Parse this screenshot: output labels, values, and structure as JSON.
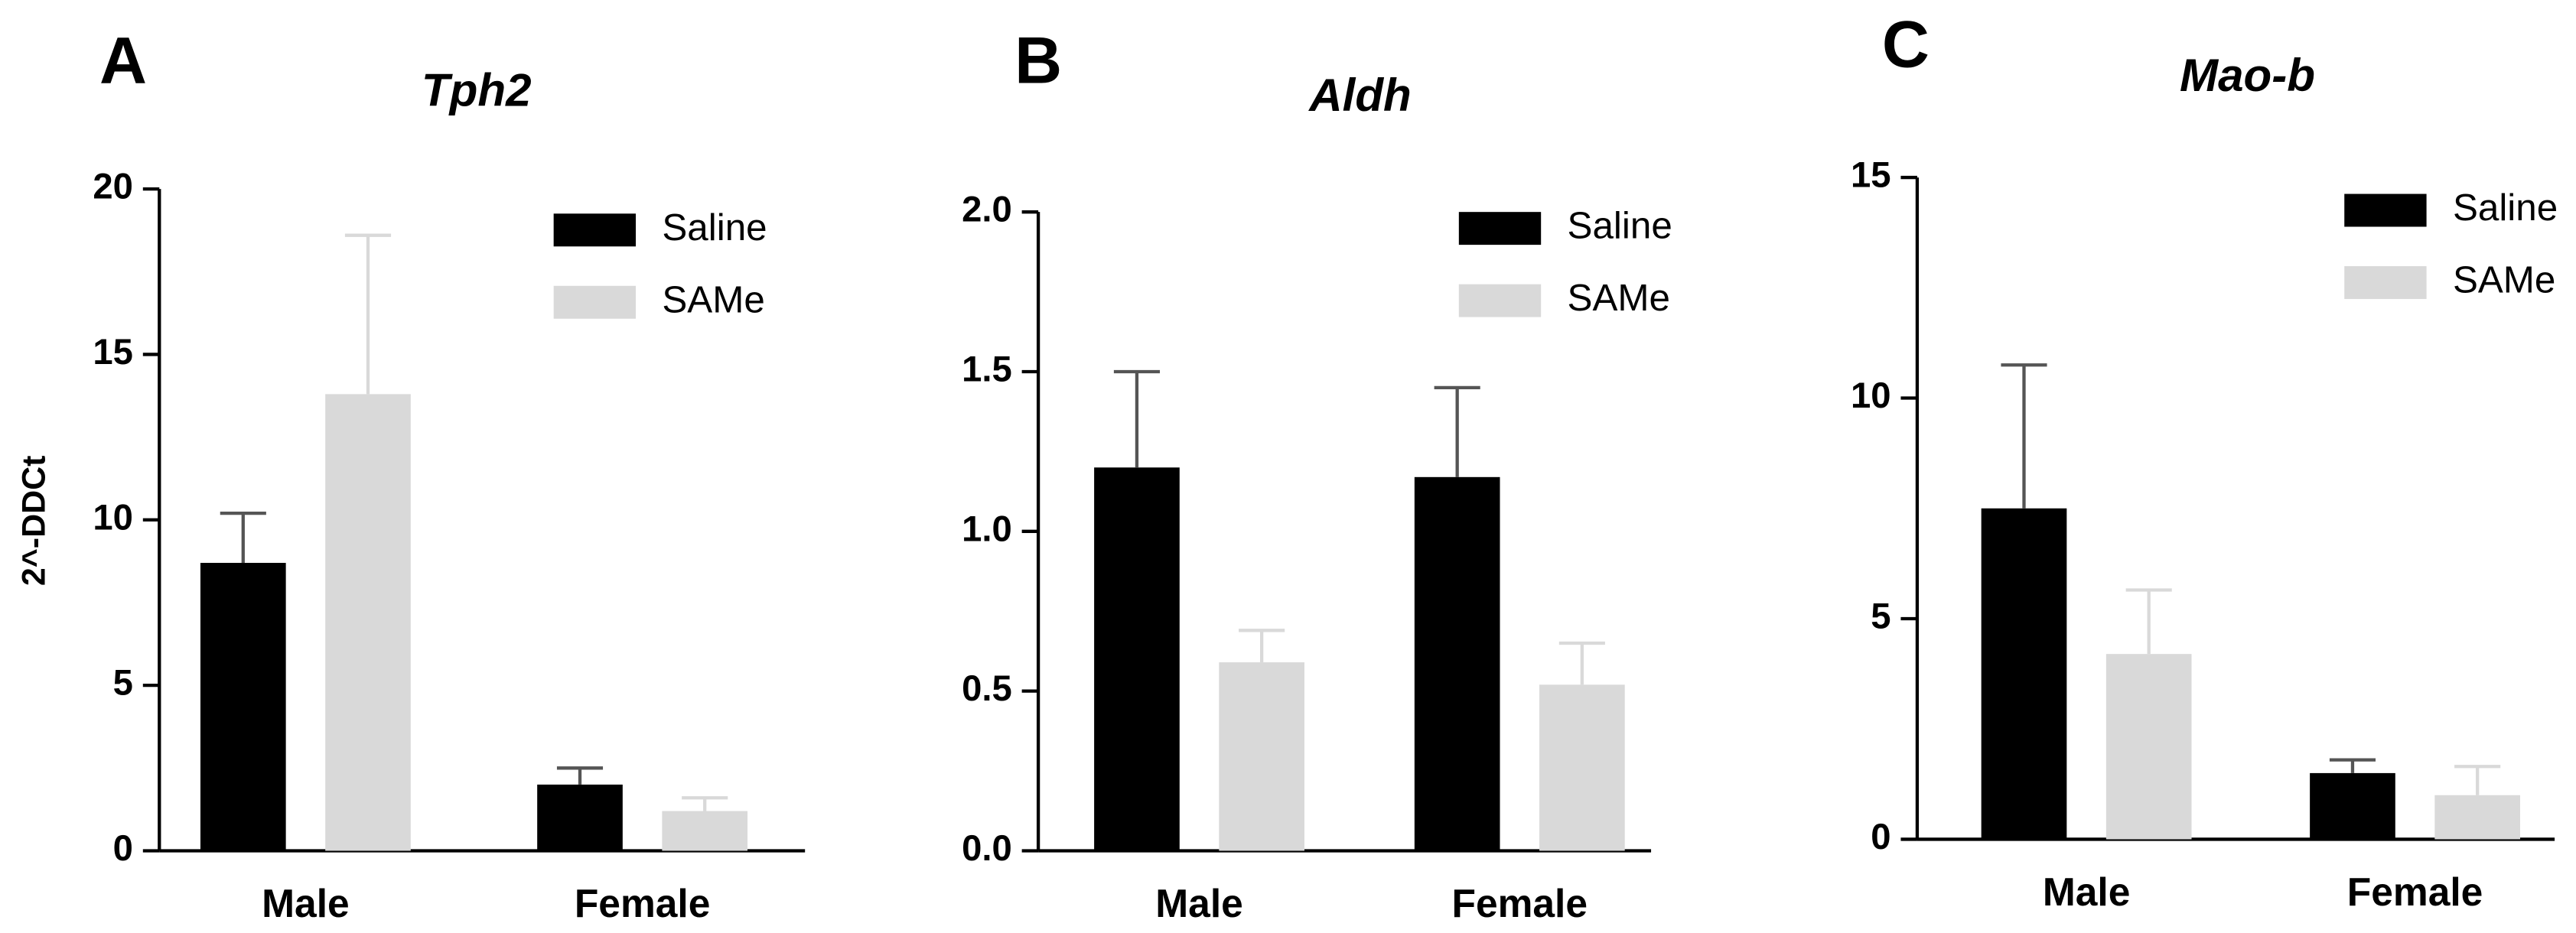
{
  "chart_data": [
    {
      "type": "bar",
      "panel": "A",
      "title": "Tph2",
      "ylabel": "2^-DDCt",
      "categories": [
        "Male",
        "Female"
      ],
      "series": [
        {
          "name": "Saline",
          "color": "#000000",
          "values": [
            8.7,
            2.0
          ],
          "errors": [
            1.5,
            0.5
          ]
        },
        {
          "name": "SAMe",
          "color": "#d9d9d9",
          "values": [
            13.8,
            1.2
          ],
          "errors": [
            4.8,
            0.4
          ]
        }
      ],
      "ylim": [
        0,
        20
      ],
      "yticks": [
        0,
        5,
        10,
        15,
        20
      ],
      "legend": "upper right"
    },
    {
      "type": "bar",
      "panel": "B",
      "title": "Aldh",
      "categories": [
        "Male",
        "Female"
      ],
      "series": [
        {
          "name": "Saline",
          "color": "#000000",
          "values": [
            1.2,
            1.17
          ],
          "errors": [
            0.3,
            0.28
          ]
        },
        {
          "name": "SAMe",
          "color": "#d9d9d9",
          "values": [
            0.59,
            0.52
          ],
          "errors": [
            0.1,
            0.13
          ]
        }
      ],
      "ylim": [
        0,
        2
      ],
      "yticks": [
        {
          "value": 0,
          "label": "0.0"
        },
        0.5,
        {
          "value": 1,
          "label": "1.0"
        },
        1.5,
        {
          "value": 2,
          "label": "2.0"
        }
      ],
      "legend": "upper right"
    },
    {
      "type": "bar",
      "panel": "C",
      "title": "Mao-b",
      "categories": [
        "Male",
        "Female"
      ],
      "series": [
        {
          "name": "Saline",
          "color": "#000000",
          "values": [
            7.5,
            1.5
          ],
          "errors": [
            3.25,
            0.3
          ]
        },
        {
          "name": "SAMe",
          "color": "#d9d9d9",
          "values": [
            4.2,
            1.0
          ],
          "errors": [
            1.45,
            0.65
          ]
        }
      ],
      "ylim": [
        0,
        15
      ],
      "yticks": [
        0,
        5,
        10,
        15
      ],
      "legend": "upper right"
    }
  ]
}
